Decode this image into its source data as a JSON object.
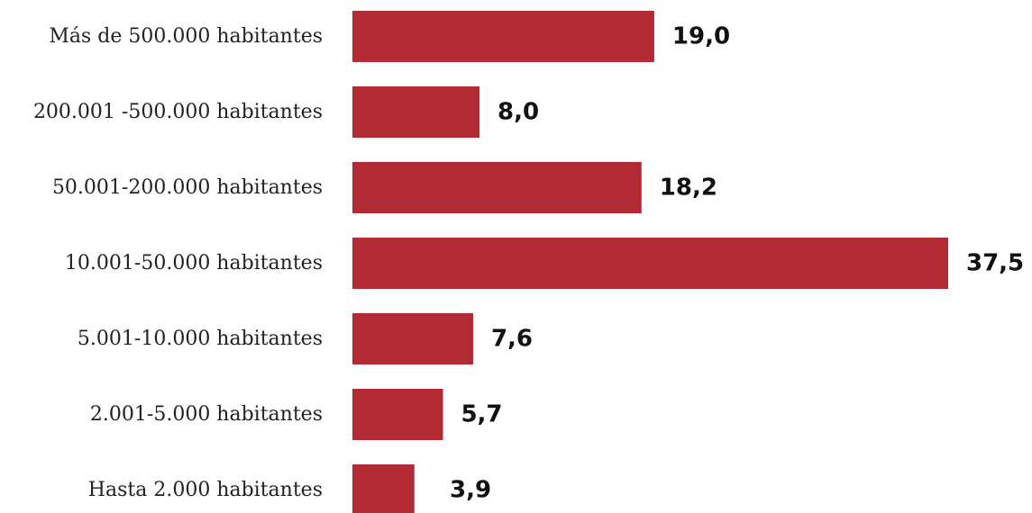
{
  "chart_data": {
    "type": "bar",
    "orientation": "horizontal",
    "title": "",
    "xlabel": "",
    "ylabel": "",
    "categories": [
      "Más de 500.000 habitantes",
      "200.001 -500.000 habitantes",
      "50.001-200.000 habitantes",
      "10.001-50.000 habitantes",
      "5.001-10.000 habitantes",
      "2.001-5.000 habitantes",
      "Hasta 2.000 habitantes"
    ],
    "values": [
      19.0,
      8.0,
      18.2,
      37.5,
      7.6,
      5.7,
      3.9
    ],
    "value_labels": [
      "19,0",
      "8,0",
      "18,2",
      "37,5",
      "7,6",
      "5,7",
      "3,9"
    ],
    "xlim": [
      0,
      37.5
    ],
    "grid": false,
    "legend": "none",
    "bar_color": "#b22a33"
  }
}
